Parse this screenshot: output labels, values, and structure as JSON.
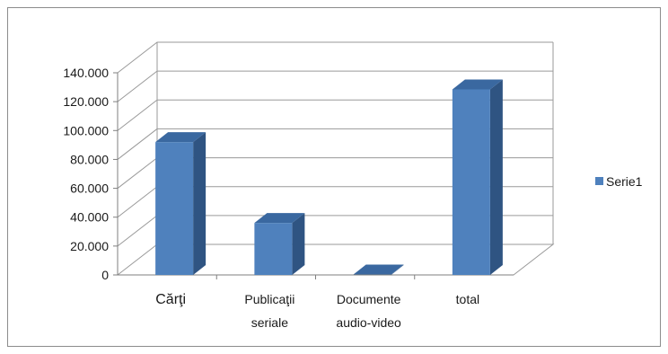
{
  "chart_data": {
    "type": "bar",
    "style": "3d-column",
    "categories": [
      "Cărţi",
      "Publicaţii\nseriale",
      "Documente\naudio-video",
      "total"
    ],
    "series": [
      {
        "name": "Serie1",
        "values": [
          92000,
          36000,
          300,
          128500
        ]
      }
    ],
    "ylim": [
      0,
      140000
    ],
    "yticks": [
      0,
      20000,
      40000,
      60000,
      80000,
      100000,
      120000,
      140000
    ],
    "ytick_labels": [
      "0",
      "20.000",
      "40.000",
      "60.000",
      "80.000",
      "100.000",
      "120.000",
      "140.000"
    ],
    "grid": true,
    "legend_position": "right",
    "colors": {
      "bar_front": "#4f81bd",
      "bar_side": "#2f5482",
      "bar_top": "#3a68a0",
      "gridline": "#9a9a9a",
      "axis_line": "#7f7f7f"
    }
  }
}
